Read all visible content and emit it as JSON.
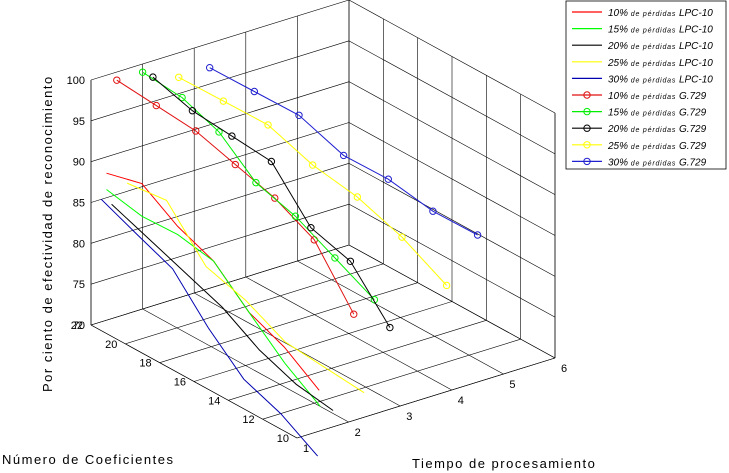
{
  "chart_data": {
    "type": "line",
    "projection": "3d",
    "xlabel": "Tiempo de procesamiento",
    "ylabel": "Número de Coeficientes",
    "zlabel": "Por ciento de efectividad de reconocimiento",
    "xlim": [
      1,
      6
    ],
    "ylim": [
      10,
      22
    ],
    "zlim": [
      70,
      100
    ],
    "xticks": [
      "1",
      "2",
      "3",
      "4",
      "5",
      "6"
    ],
    "yticks": [
      "10",
      "12",
      "14",
      "16",
      "18",
      "20",
      "22"
    ],
    "zticks": [
      "70",
      "75",
      "80",
      "85",
      "90",
      "95",
      "100"
    ],
    "grid": true,
    "legend_position": "top-right",
    "series": [
      {
        "legend_pct": "10%",
        "legend_mid": "de pérdidas",
        "legend_codec": "LPC-10",
        "color": "#ff0000",
        "marker": "none",
        "x": [
          1.3,
          1.32,
          1.35,
          1.38,
          1.4,
          1.42,
          1.43
        ],
        "y": [
          22,
          20,
          18,
          16,
          14,
          12,
          10
        ],
        "z": [
          88,
          89,
          86,
          84,
          80,
          78,
          75
        ]
      },
      {
        "legend_pct": "15%",
        "legend_mid": "de pérdidas",
        "legend_codec": "LPC-10",
        "color": "#00ff00",
        "marker": "none",
        "x": [
          1.3,
          1.32,
          1.35,
          1.38,
          1.4,
          1.43,
          1.45
        ],
        "y": [
          22,
          20,
          18,
          16,
          14,
          12,
          10
        ],
        "z": [
          86,
          85,
          85,
          84,
          80,
          76,
          73
        ]
      },
      {
        "legend_pct": "20%",
        "legend_mid": "de pérdidas",
        "legend_codec": "LPC-10",
        "color": "#000000",
        "marker": "none",
        "x": [
          1.4,
          1.45,
          1.5,
          1.55,
          1.6,
          1.65,
          1.7
        ],
        "y": [
          22,
          20,
          18,
          16,
          14,
          12,
          10
        ],
        "z": [
          84,
          82,
          80,
          78,
          75,
          73,
          72
        ]
      },
      {
        "legend_pct": "25%",
        "legend_mid": "de pérdidas",
        "legend_codec": "LPC-10",
        "color": "#ffff00",
        "marker": "none",
        "x": [
          1.7,
          1.8,
          1.9,
          2.0,
          2.1,
          2.2,
          2.3
        ],
        "y": [
          22,
          20,
          18,
          16,
          14,
          12,
          10
        ],
        "z": [
          86,
          86,
          80,
          78,
          75,
          74,
          73
        ]
      },
      {
        "legend_pct": "30%",
        "legend_mid": "de pérdidas",
        "legend_codec": "LPC-10",
        "color": "#0000b0",
        "marker": "none",
        "x": [
          1.2,
          1.22,
          1.25,
          1.28,
          1.3,
          1.35,
          1.4
        ],
        "y": [
          22,
          20,
          18,
          16,
          14,
          12,
          10
        ],
        "z": [
          85,
          83,
          81,
          76,
          72,
          70,
          67
        ]
      },
      {
        "legend_pct": "10%",
        "legend_mid": "de pérdidas",
        "legend_codec": "G.729",
        "color": "#e01010",
        "marker": "circle",
        "x": [
          1.5,
          1.6,
          1.7,
          1.8,
          1.9,
          2.0,
          2.1
        ],
        "y": [
          22,
          20,
          18,
          16,
          14,
          12,
          10
        ],
        "z": [
          99,
          98,
          97,
          95,
          93,
          90,
          83
        ]
      },
      {
        "legend_pct": "15%",
        "legend_mid": "de pérdidas",
        "legend_codec": "G.729",
        "color": "#00ee00",
        "marker": "circle",
        "x": [
          2.0,
          2.1,
          2.15,
          2.2,
          2.3,
          2.4,
          2.5
        ],
        "y": [
          22,
          20,
          18,
          16,
          14,
          12,
          10
        ],
        "z": [
          99,
          98,
          96,
          92,
          90,
          87,
          84
        ]
      },
      {
        "legend_pct": "20%",
        "legend_mid": "de pérdidas",
        "legend_codec": "G.729",
        "color": "#000000",
        "marker": "circle",
        "x": [
          2.2,
          2.3,
          2.4,
          2.5,
          2.6,
          2.7,
          2.8
        ],
        "y": [
          22,
          20,
          18,
          16,
          14,
          12,
          10
        ],
        "z": [
          98,
          96,
          95,
          94,
          88,
          86,
          80
        ]
      },
      {
        "legend_pct": "25%",
        "legend_mid": "de pérdidas",
        "legend_codec": "G.729",
        "color": "#ffff00",
        "marker": "circle",
        "x": [
          2.7,
          2.9,
          3.1,
          3.3,
          3.5,
          3.7,
          3.9
        ],
        "y": [
          22,
          20,
          18,
          16,
          14,
          12,
          10
        ],
        "z": [
          97,
          96,
          95,
          92,
          90,
          87,
          83
        ]
      },
      {
        "legend_pct": "30%",
        "legend_mid": "de pérdidas",
        "legend_codec": "G.729",
        "color": "#2020d0",
        "marker": "circle",
        "x": [
          3.3,
          3.5,
          3.7,
          3.9,
          4.1,
          4.3,
          4.5
        ],
        "y": [
          22,
          20,
          18,
          16,
          14,
          12,
          10
        ],
        "z": [
          97,
          96,
          95,
          92,
          91,
          89,
          88
        ]
      }
    ]
  }
}
